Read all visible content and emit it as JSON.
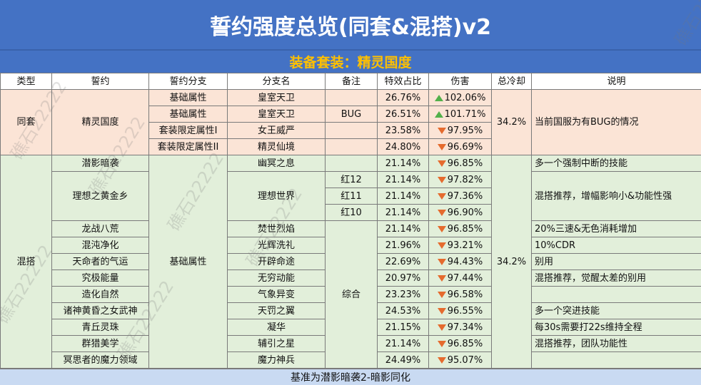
{
  "title": "誓约强度总览(同套&混搭)v2",
  "subtitle": "装备套装：精灵国度",
  "headers": [
    "类型",
    "誓约",
    "誓约分支",
    "分支名",
    "备注",
    "特效占比",
    "伤害",
    "总冷却",
    "说明"
  ],
  "group1": {
    "type": "同套",
    "oath": "精灵国度",
    "cooldown": "34.2%",
    "note": "当前国服为有BUG的情况",
    "rows": [
      {
        "branch": "基础属性",
        "name": "皇室天卫",
        "remark": "",
        "pct": "26.76%",
        "dmg": "102.06%",
        "dir": "up"
      },
      {
        "branch": "基础属性",
        "name": "皇室天卫",
        "remark": "BUG",
        "pct": "26.51%",
        "dmg": "101.71%",
        "dir": "up"
      },
      {
        "branch": "套装限定属性I",
        "name": "女王威严",
        "remark": "",
        "pct": "23.58%",
        "dmg": "97.95%",
        "dir": "down"
      },
      {
        "branch": "套装限定属性II",
        "name": "精灵仙境",
        "remark": "",
        "pct": "24.80%",
        "dmg": "96.69%",
        "dir": "down"
      }
    ]
  },
  "group2": {
    "type": "混搭",
    "branch": "基础属性",
    "cooldown": "34.2%",
    "remark_combined": "综合",
    "rows": [
      {
        "oath": "潜影暗袭",
        "name": "幽冥之息",
        "remark": "",
        "pct": "21.14%",
        "dmg": "96.85%",
        "dir": "down",
        "note": "多一个强制中断的技能"
      },
      {
        "oath": "理想之黄金乡",
        "name": "理想世界",
        "remark": "红12",
        "pct": "21.14%",
        "dmg": "97.82%",
        "dir": "down",
        "note": "混搭推荐，增幅影响小&功能性强"
      },
      {
        "remark": "红11",
        "pct": "21.14%",
        "dmg": "97.36%",
        "dir": "down"
      },
      {
        "remark": "红10",
        "pct": "21.14%",
        "dmg": "96.90%",
        "dir": "down"
      },
      {
        "oath": "龙战八荒",
        "name": "焚世烈焰",
        "pct": "21.14%",
        "dmg": "96.85%",
        "dir": "down",
        "note": "20%三速&无色消耗增加"
      },
      {
        "oath": "混沌净化",
        "name": "光辉洗礼",
        "pct": "21.96%",
        "dmg": "93.21%",
        "dir": "down",
        "note": "10%CDR"
      },
      {
        "oath": "天命者的气运",
        "name": "开辟命途",
        "pct": "22.69%",
        "dmg": "94.43%",
        "dir": "down",
        "note": "别用"
      },
      {
        "oath": "究极能量",
        "name": "无穷动能",
        "pct": "20.97%",
        "dmg": "97.44%",
        "dir": "down",
        "note": "混搭推荐，觉醒太差的别用"
      },
      {
        "oath": "造化自然",
        "name": "气象异变",
        "pct": "23.23%",
        "dmg": "96.58%",
        "dir": "down",
        "note": ""
      },
      {
        "oath": "诸神黄昏之女武神",
        "name": "天罚之翼",
        "pct": "24.53%",
        "dmg": "96.55%",
        "dir": "down",
        "note": "多一个突进技能"
      },
      {
        "oath": "青丘灵珠",
        "name": "凝华",
        "pct": "21.15%",
        "dmg": "97.34%",
        "dir": "down",
        "note": "每30s需要打22s维持全程"
      },
      {
        "oath": "群猎美学",
        "name": "辅引之星",
        "pct": "21.14%",
        "dmg": "96.85%",
        "dir": "down",
        "note": "混搭推荐，团队功能性"
      },
      {
        "oath": "冥思者的魔力领域",
        "name": "魔力神兵",
        "pct": "24.49%",
        "dmg": "95.07%",
        "dir": "down",
        "note": ""
      }
    ]
  },
  "footer": "基准为潜影暗袭2-暗影同化",
  "watermark": "礁石22222",
  "colors": {
    "header_bg": "#4472c4",
    "subtitle_text": "#ffc000",
    "group1_bg": "#fbe4d6",
    "group2_bg": "#e2efda",
    "footer_bg": "#c9daf2",
    "up_arrow": "#52b04a",
    "down_arrow": "#e56b2e"
  }
}
